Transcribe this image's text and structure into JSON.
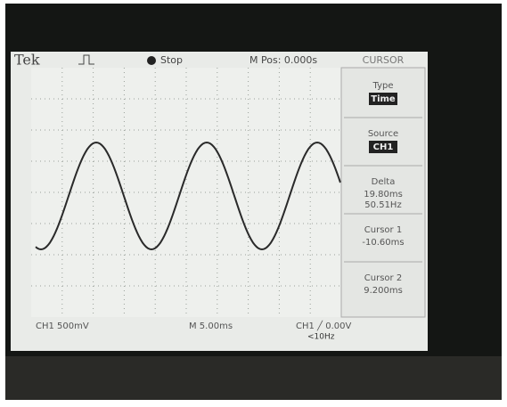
{
  "header": {
    "brand": "Tek",
    "status": "Stop",
    "position": "M Pos: 0.000s",
    "menu": "CURSOR"
  },
  "menu": {
    "items": [
      {
        "label": "Type",
        "value": "Time"
      },
      {
        "label": "Source",
        "value": "CH1"
      },
      {
        "label": "Delta",
        "value": "19.80ms",
        "value2": "50.51Hz"
      },
      {
        "label": "Cursor 1",
        "value": "-10.60ms"
      },
      {
        "label": "Cursor 2",
        "value": "9.200ms"
      }
    ]
  },
  "footer": {
    "channel": "CH1  500mV",
    "timebase": "M 5.00ms",
    "trigger": "CH1 ╱ 0.00V",
    "frequency": "<10Hz"
  }
}
